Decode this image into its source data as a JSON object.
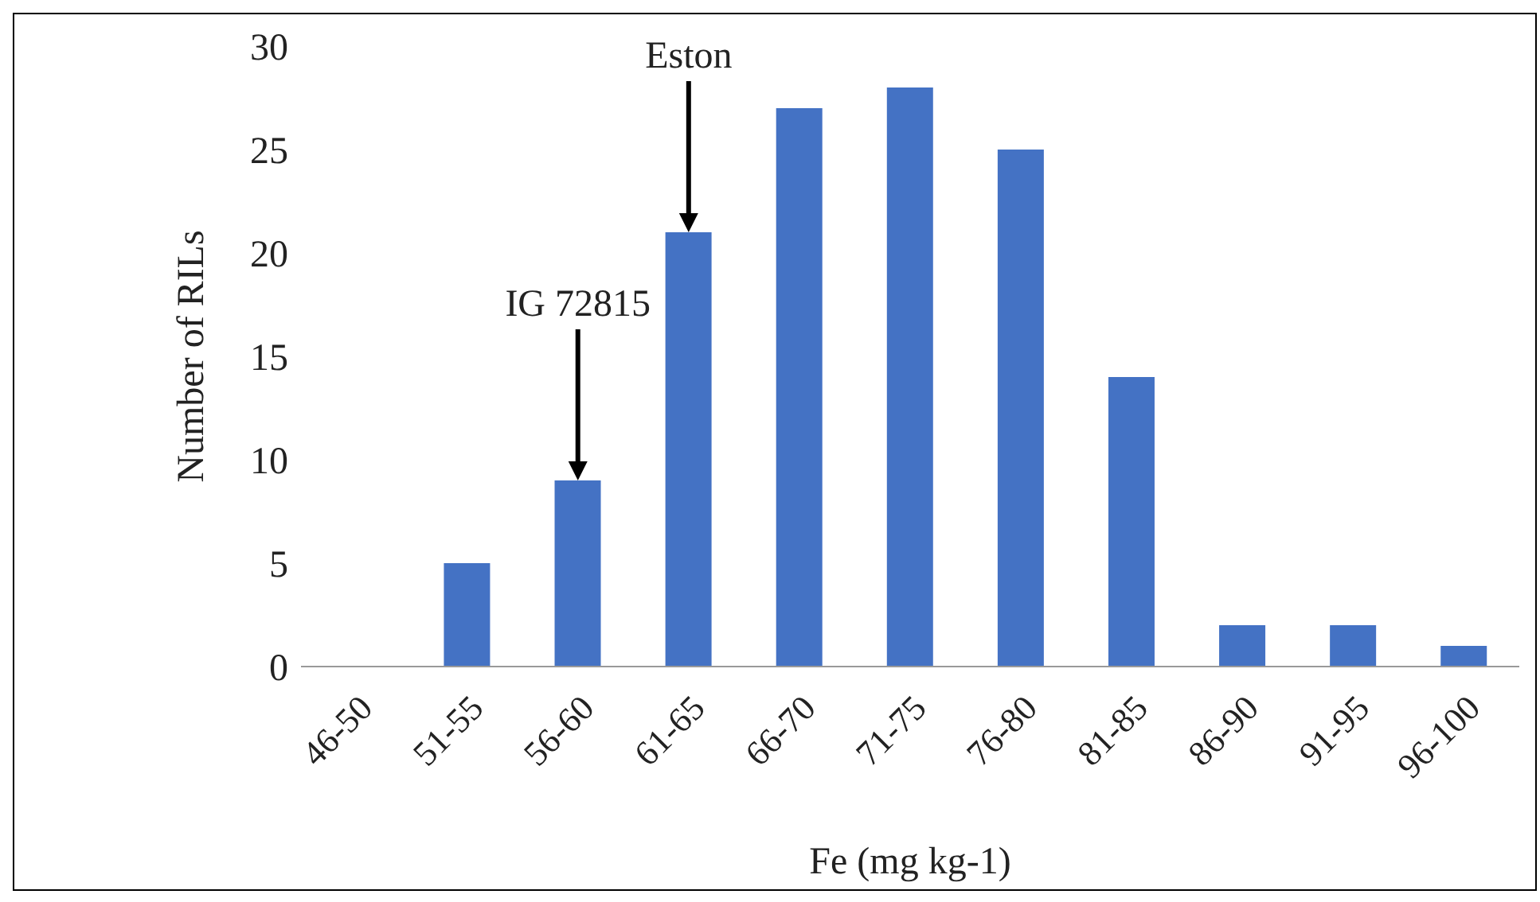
{
  "chart_data": {
    "type": "bar",
    "xlabel": "Fe (mg kg-1)",
    "ylabel": "Number of RILs",
    "categories": [
      "46-50",
      "51-55",
      "56-60",
      "61-65",
      "66-70",
      "71-75",
      "76-80",
      "81-85",
      "86-90",
      "91-95",
      "96-100"
    ],
    "values": [
      0,
      5,
      9,
      21,
      27,
      28,
      25,
      14,
      2,
      2,
      1
    ],
    "color": "#4472c4",
    "ylim": [
      0,
      30
    ],
    "yticks": [
      0,
      5,
      10,
      15,
      20,
      25,
      30
    ],
    "grid": false,
    "legend": false,
    "annotations": [
      "Eston",
      "IG 72815"
    ]
  }
}
